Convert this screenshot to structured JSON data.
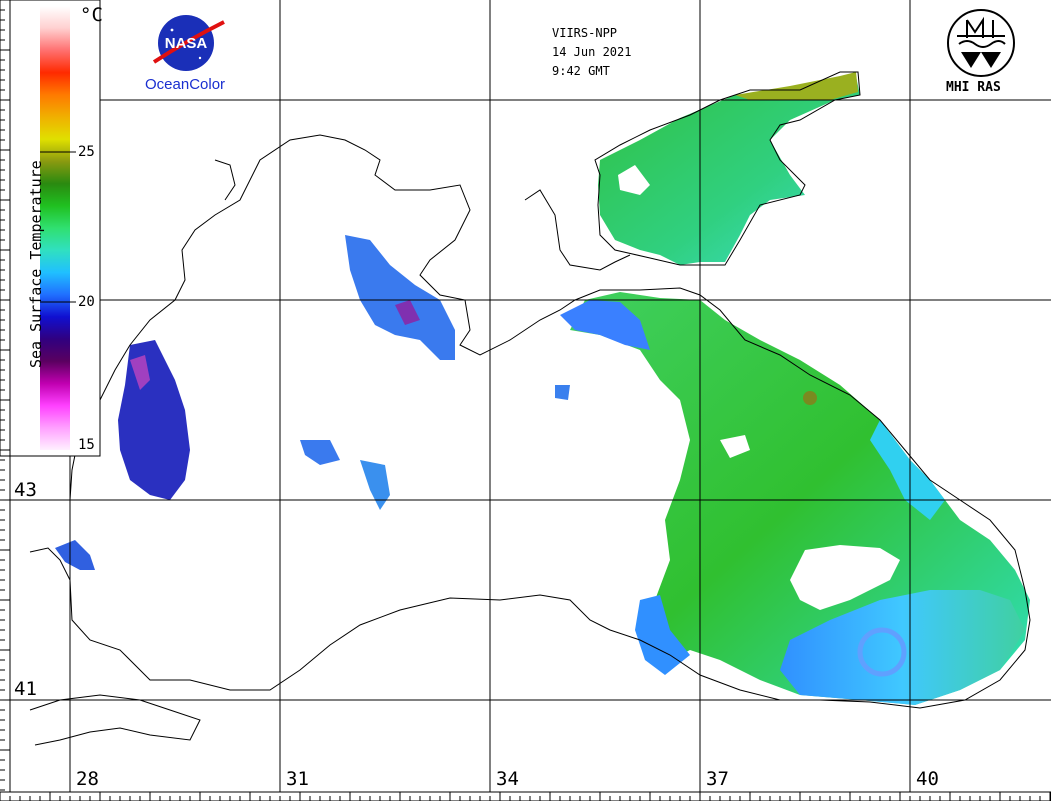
{
  "header": {
    "satellite": "VIIRS-NPP",
    "date": "14 Jun 2021",
    "time": "9:42 GMT"
  },
  "logos": {
    "nasa_text": "NASA",
    "nasa_subtitle": "OceanColor",
    "institute": "MHI RAS"
  },
  "colorbar": {
    "title": "Sea Surface Temperature",
    "unit": "°C",
    "ticks": [
      "25",
      "20",
      "15"
    ],
    "colors": [
      "#ffffff",
      "#ffd0d0",
      "#ff7070",
      "#ff2a00",
      "#ff7a00",
      "#f0b000",
      "#e0e000",
      "#8a9a10",
      "#2a8a10",
      "#20c020",
      "#30e070",
      "#30e0c0",
      "#20c0ff",
      "#2070ff",
      "#1010d0",
      "#300080",
      "#5a0060",
      "#c000b0",
      "#ff40ff",
      "#ffa0ff",
      "#fff0ff"
    ]
  },
  "axes": {
    "latitude_labels": [
      "43",
      "41"
    ],
    "longitude_labels": [
      "28",
      "31",
      "34",
      "37",
      "40"
    ]
  },
  "icons": {
    "nasa": "nasa-meatball-icon",
    "mhi": "mhi-ras-emblem-icon"
  }
}
